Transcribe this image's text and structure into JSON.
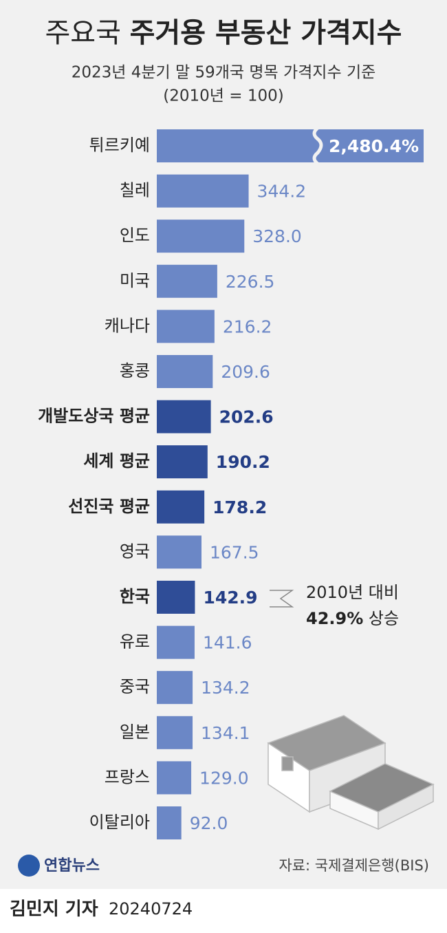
{
  "chart_data": {
    "type": "barh",
    "title": [
      "주요국",
      "주거용 부동산 가격지수"
    ],
    "subtitle": [
      "2023년 4분기 말 59개국 명목 가격지수 기준",
      "(2010년 = 100)"
    ],
    "categories": [
      "튀르키예",
      "칠레",
      "인도",
      "미국",
      "캐나다",
      "홍콩",
      "개발도상국 평균",
      "세계 평균",
      "선진국 평균",
      "영국",
      "한국",
      "유로",
      "중국",
      "일본",
      "프랑스",
      "이탈리아"
    ],
    "values": [
      2480.4,
      344.2,
      328.0,
      226.5,
      216.2,
      209.6,
      202.6,
      190.2,
      178.2,
      167.5,
      142.9,
      141.6,
      134.2,
      134.1,
      129.0,
      92.0
    ],
    "value_labels": [
      "2,480.4%",
      "344.2",
      "328.0",
      "226.5",
      "216.2",
      "209.6",
      "202.6",
      "190.2",
      "178.2",
      "167.5",
      "142.9",
      "141.6",
      "134.2",
      "134.1",
      "129.0",
      "92.0"
    ],
    "highlight": [
      false,
      false,
      false,
      false,
      false,
      false,
      true,
      true,
      true,
      false,
      true,
      false,
      false,
      false,
      false,
      false
    ],
    "color": "#6b87c6",
    "highlight_color": "#2f4d97",
    "xlim": [
      0,
      1000
    ],
    "annotation": [
      "2010년 대비",
      "42.9%",
      "상승"
    ],
    "source": "자료: 국제결제은행(BIS)",
    "logo": "연합뉴스",
    "author": "김민지 기자",
    "date": "20240724"
  }
}
